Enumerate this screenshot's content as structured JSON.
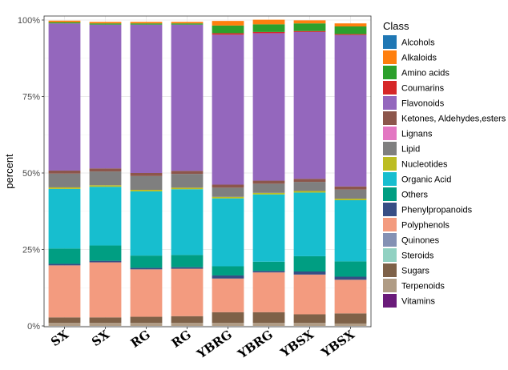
{
  "chart_data": {
    "type": "bar",
    "stacked": true,
    "ylabel": "percent",
    "xlabel": "",
    "ylim": [
      0,
      1
    ],
    "yticks": [
      0,
      0.25,
      0.5,
      0.75,
      1.0
    ],
    "ytick_labels": [
      "0%",
      "25%",
      "50%",
      "75%",
      "100%"
    ],
    "grid": true,
    "legend_position": "right",
    "legend_title": "Class",
    "categories": [
      "SX",
      "SX",
      "RG",
      "RG",
      "YBRG",
      "YBRG",
      "YBSX",
      "YBSX"
    ],
    "series": [
      {
        "name": "Alcohols",
        "color": "#1f77b4",
        "values": [
          0.0,
          0.0,
          0.0,
          0.0,
          0.0,
          0.0,
          0.0,
          0.0
        ]
      },
      {
        "name": "Alkaloids",
        "color": "#ff7f0e",
        "values": [
          0.005,
          0.005,
          0.005,
          0.005,
          0.015,
          0.015,
          0.01,
          0.01
        ]
      },
      {
        "name": "Amino acids",
        "color": "#2ca02c",
        "values": [
          0.004,
          0.004,
          0.004,
          0.004,
          0.025,
          0.025,
          0.025,
          0.025
        ]
      },
      {
        "name": "Coumarins",
        "color": "#d62728",
        "values": [
          0.0,
          0.0,
          0.0,
          0.0,
          0.005,
          0.004,
          0.003,
          0.003
        ]
      },
      {
        "name": "Flavonoids",
        "color": "#9467bd",
        "values": [
          0.481,
          0.47,
          0.485,
          0.478,
          0.49,
          0.482,
          0.48,
          0.495
        ]
      },
      {
        "name": "Ketones, Aldehydes,esters",
        "color": "#8c564b",
        "values": [
          0.01,
          0.01,
          0.01,
          0.01,
          0.01,
          0.01,
          0.01,
          0.01
        ]
      },
      {
        "name": "Lignans",
        "color": "#e377c2",
        "values": [
          0.0,
          0.0,
          0.0,
          0.0,
          0.0,
          0.0,
          0.0,
          0.0
        ]
      },
      {
        "name": "Lipid",
        "color": "#7f7f7f",
        "values": [
          0.045,
          0.045,
          0.045,
          0.045,
          0.03,
          0.03,
          0.03,
          0.03
        ]
      },
      {
        "name": "Nucleotides",
        "color": "#bcbd22",
        "values": [
          0.005,
          0.005,
          0.005,
          0.005,
          0.005,
          0.005,
          0.005,
          0.005
        ]
      },
      {
        "name": "Organic Acid",
        "color": "#17becf",
        "values": [
          0.195,
          0.192,
          0.21,
          0.215,
          0.222,
          0.22,
          0.208,
          0.2
        ]
      },
      {
        "name": "Others",
        "color": "#009E82",
        "values": [
          0.05,
          0.05,
          0.04,
          0.04,
          0.03,
          0.03,
          0.05,
          0.05
        ]
      },
      {
        "name": "Phenylpropanoids",
        "color": "#374e85",
        "values": [
          0.005,
          0.005,
          0.005,
          0.005,
          0.01,
          0.005,
          0.01,
          0.01
        ]
      },
      {
        "name": "Polyphenols",
        "color": "#f39b7f",
        "values": [
          0.17,
          0.18,
          0.155,
          0.155,
          0.11,
          0.13,
          0.13,
          0.11
        ]
      },
      {
        "name": "Quinones",
        "color": "#8491b4",
        "values": [
          0.0,
          0.0,
          0.0,
          0.0,
          0.0,
          0.0,
          0.0,
          0.0
        ]
      },
      {
        "name": "Steroids",
        "color": "#91d1c2",
        "values": [
          0.0,
          0.0,
          0.0,
          0.0,
          0.0,
          0.0,
          0.0,
          0.0
        ]
      },
      {
        "name": "Sugars",
        "color": "#7e6148",
        "values": [
          0.018,
          0.018,
          0.02,
          0.022,
          0.035,
          0.035,
          0.028,
          0.033
        ]
      },
      {
        "name": "Terpenoids",
        "color": "#b09c85",
        "values": [
          0.01,
          0.01,
          0.01,
          0.01,
          0.01,
          0.01,
          0.01,
          0.008
        ]
      },
      {
        "name": "Vitamins",
        "color": "#6a1b7a",
        "values": [
          0.0,
          0.0,
          0.0,
          0.0,
          0.0,
          0.0,
          0.0,
          0.0
        ]
      }
    ]
  }
}
